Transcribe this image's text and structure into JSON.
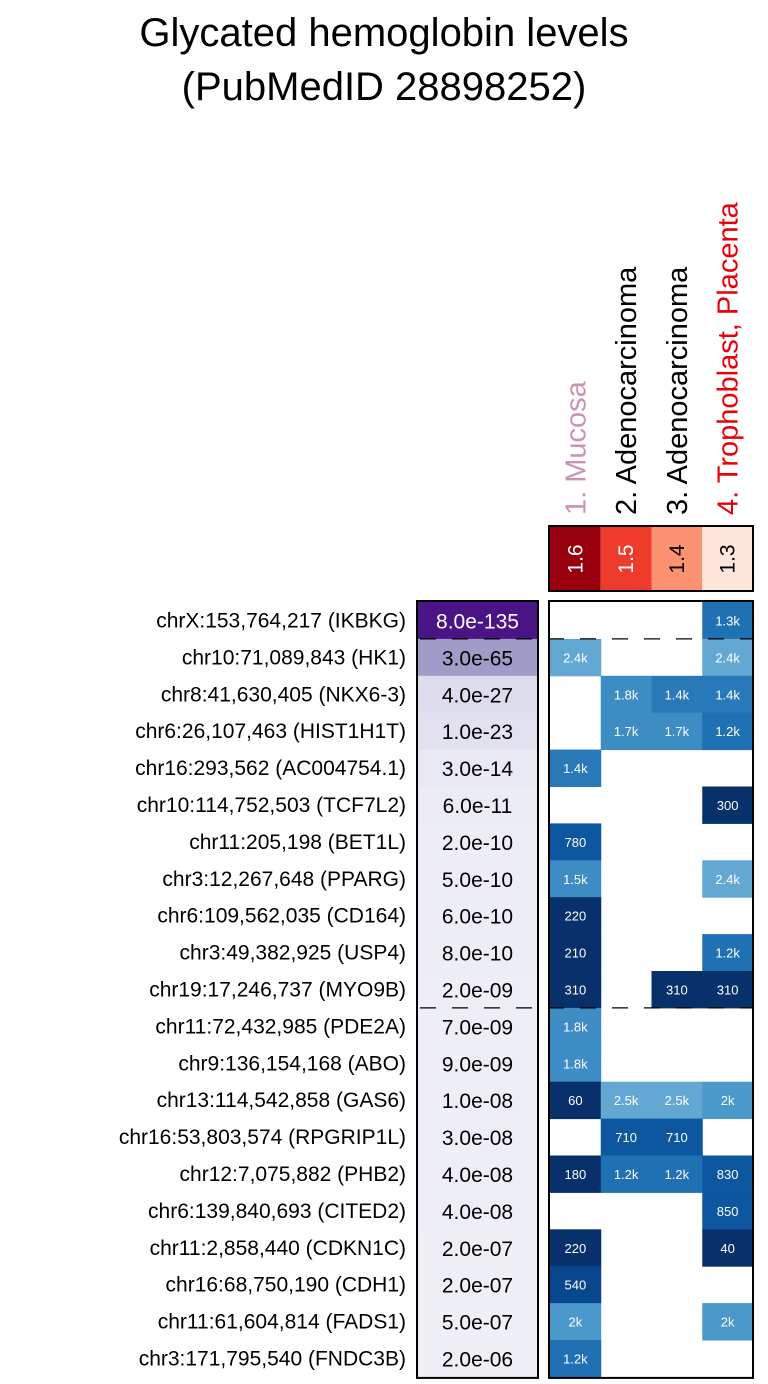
{
  "chart_data": {
    "type": "heatmap",
    "title": [
      "Glycated hemoglobin levels",
      "(PubMedID 28898252)"
    ],
    "columns": [
      {
        "label": "1. Mucosa",
        "color": "#c994b3",
        "enrichment": "1.6",
        "legend_color": "#99000d",
        "legend_text_color": "#ffffff"
      },
      {
        "label": "2. Adenocarcinoma",
        "color": "#000000",
        "enrichment": "1.5",
        "legend_color": "#ef3b2c",
        "legend_text_color": "#ffffff"
      },
      {
        "label": "3. Adenocarcinoma",
        "color": "#000000",
        "enrichment": "1.4",
        "legend_color": "#fc9272",
        "legend_text_color": "#000000"
      },
      {
        "label": "4. Trophoblast, Placenta",
        "color": "#e8000b",
        "enrichment": "1.3",
        "legend_color": "#fee5d9",
        "legend_text_color": "#000000"
      }
    ],
    "rows": [
      {
        "label": "chrX:153,764,217 (IKBKG)",
        "pvalue": "8.0e-135",
        "pcolor": "#4a1486",
        "ptext": "#ffffff",
        "cells": [
          null,
          null,
          null,
          "1.3k"
        ]
      },
      {
        "label": "chr10:71,089,843 (HK1)",
        "pvalue": "3.0e-65",
        "pcolor": "#a09cc8",
        "ptext": "#000000",
        "cells": [
          "2.4k",
          null,
          null,
          "2.4k"
        ]
      },
      {
        "label": "chr8:41,630,405 (NKX6-3)",
        "pvalue": "4.0e-27",
        "pcolor": "#dcdcec",
        "ptext": "#000000",
        "cells": [
          null,
          "1.8k",
          "1.4k",
          "1.4k"
        ]
      },
      {
        "label": "chr6:26,107,463 (HIST1H1T)",
        "pvalue": "1.0e-23",
        "pcolor": "#e1e1ef",
        "ptext": "#000000",
        "cells": [
          null,
          "1.7k",
          "1.7k",
          "1.2k"
        ]
      },
      {
        "label": "chr16:293,562 (AC004754.1)",
        "pvalue": "3.0e-14",
        "pcolor": "#e9e9f3",
        "ptext": "#000000",
        "cells": [
          "1.4k",
          null,
          null,
          null
        ]
      },
      {
        "label": "chr10:114,752,503 (TCF7L2)",
        "pvalue": "6.0e-11",
        "pcolor": "#ececf5",
        "ptext": "#000000",
        "cells": [
          null,
          null,
          null,
          "300"
        ]
      },
      {
        "label": "chr11:205,198 (BET1L)",
        "pvalue": "2.0e-10",
        "pcolor": "#ededf5",
        "ptext": "#000000",
        "cells": [
          "780",
          null,
          null,
          null
        ]
      },
      {
        "label": "chr3:12,267,648 (PPARG)",
        "pvalue": "5.0e-10",
        "pcolor": "#ededf5",
        "ptext": "#000000",
        "cells": [
          "1.5k",
          null,
          null,
          "2.4k"
        ]
      },
      {
        "label": "chr6:109,562,035 (CD164)",
        "pvalue": "6.0e-10",
        "pcolor": "#ededf5",
        "ptext": "#000000",
        "cells": [
          "220",
          null,
          null,
          null
        ]
      },
      {
        "label": "chr3:49,382,925 (USP4)",
        "pvalue": "8.0e-10",
        "pcolor": "#ededf5",
        "ptext": "#000000",
        "cells": [
          "210",
          null,
          null,
          "1.2k"
        ]
      },
      {
        "label": "chr19:17,246,737 (MYO9B)",
        "pvalue": "2.0e-09",
        "pcolor": "#eeeef6",
        "ptext": "#000000",
        "cells": [
          "310",
          null,
          "310",
          "310"
        ]
      },
      {
        "label": "chr11:72,432,985 (PDE2A)",
        "pvalue": "7.0e-09",
        "pcolor": "#eeeef6",
        "ptext": "#000000",
        "cells": [
          "1.8k",
          null,
          null,
          null
        ]
      },
      {
        "label": "chr9:136,154,168 (ABO)",
        "pvalue": "9.0e-09",
        "pcolor": "#eeeef6",
        "ptext": "#000000",
        "cells": [
          "1.8k",
          null,
          null,
          null
        ]
      },
      {
        "label": "chr13:114,542,858 (GAS6)",
        "pvalue": "1.0e-08",
        "pcolor": "#eeeef6",
        "ptext": "#000000",
        "cells": [
          "60",
          "2.5k",
          "2.5k",
          "2k"
        ]
      },
      {
        "label": "chr16:53,803,574 (RPGRIP1L)",
        "pvalue": "3.0e-08",
        "pcolor": "#eeeef6",
        "ptext": "#000000",
        "cells": [
          null,
          "710",
          "710",
          null
        ]
      },
      {
        "label": "chr12:7,075,882 (PHB2)",
        "pvalue": "4.0e-08",
        "pcolor": "#eeeef6",
        "ptext": "#000000",
        "cells": [
          "180",
          "1.2k",
          "1.2k",
          "830"
        ]
      },
      {
        "label": "chr6:139,840,693 (CITED2)",
        "pvalue": "4.0e-08",
        "pcolor": "#eeeef6",
        "ptext": "#000000",
        "cells": [
          null,
          null,
          null,
          "850"
        ]
      },
      {
        "label": "chr11:2,858,440 (CDKN1C)",
        "pvalue": "2.0e-07",
        "pcolor": "#efeff6",
        "ptext": "#000000",
        "cells": [
          "220",
          null,
          null,
          "40"
        ]
      },
      {
        "label": "chr16:68,750,190 (CDH1)",
        "pvalue": "2.0e-07",
        "pcolor": "#efeff6",
        "ptext": "#000000",
        "cells": [
          "540",
          null,
          null,
          null
        ]
      },
      {
        "label": "chr11:61,604,814 (FADS1)",
        "pvalue": "5.0e-07",
        "pcolor": "#efeff6",
        "ptext": "#000000",
        "cells": [
          "2k",
          null,
          null,
          "2k"
        ]
      },
      {
        "label": "chr3:171,795,540 (FNDC3B)",
        "pvalue": "2.0e-06",
        "pcolor": "#efeff6",
        "ptext": "#000000",
        "cells": [
          "1.2k",
          null,
          null,
          null
        ]
      }
    ],
    "dashed_after_rows": [
      0,
      10
    ]
  }
}
